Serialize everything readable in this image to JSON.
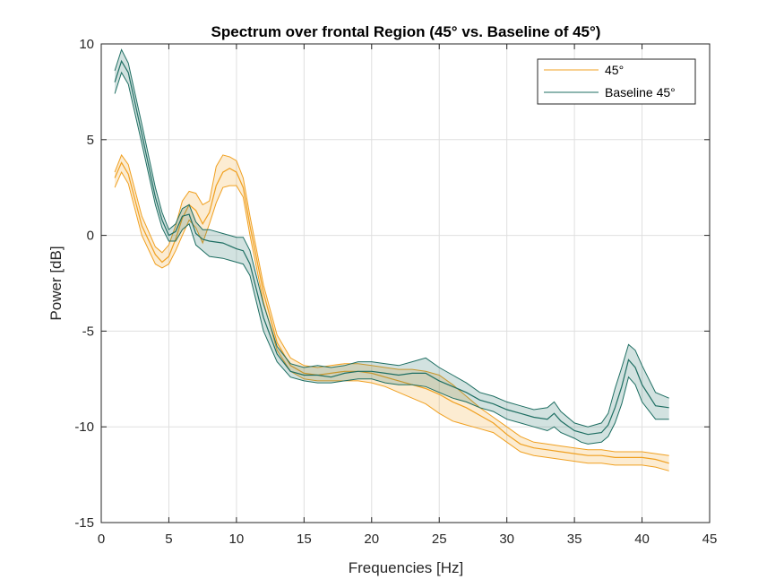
{
  "chart_data": {
    "type": "line",
    "title": "Spectrum over frontal Region (45° vs. Baseline of 45°)",
    "xlabel": "Frequencies [Hz]",
    "ylabel": "Power [dB]",
    "xlim": [
      0,
      45
    ],
    "ylim": [
      -15,
      10
    ],
    "xticks": [
      0,
      5,
      10,
      15,
      20,
      25,
      30,
      35,
      40,
      45
    ],
    "yticks": [
      -15,
      -10,
      -5,
      0,
      5,
      10
    ],
    "grid": true,
    "legend_position": "top-right",
    "series": [
      {
        "name": "45°",
        "color": "#f0a020",
        "x": [
          1,
          1.5,
          2,
          3,
          4,
          4.5,
          5,
          5.5,
          6,
          6.5,
          7,
          7.5,
          8,
          8.5,
          9,
          9.5,
          10,
          10.5,
          11,
          12,
          13,
          14,
          15,
          16,
          17,
          18,
          19,
          20,
          21,
          22,
          23,
          24,
          25,
          26,
          27,
          28,
          29,
          30,
          31,
          32,
          33,
          34,
          35,
          36,
          37,
          38,
          39,
          40,
          41,
          42
        ],
        "y": [
          3.0,
          3.8,
          3.2,
          0.5,
          -1.0,
          -1.4,
          -1.1,
          -0.2,
          0.9,
          1.6,
          1.3,
          0.6,
          1.2,
          2.6,
          3.3,
          3.5,
          3.3,
          2.5,
          0.5,
          -3.0,
          -5.6,
          -6.8,
          -7.2,
          -7.3,
          -7.2,
          -7.1,
          -7.1,
          -7.2,
          -7.4,
          -7.6,
          -7.8,
          -8.0,
          -8.3,
          -8.7,
          -9.0,
          -9.4,
          -9.8,
          -10.4,
          -10.9,
          -11.1,
          -11.2,
          -11.3,
          -11.4,
          -11.5,
          -11.5,
          -11.6,
          -11.6,
          -11.6,
          -11.7,
          -11.9
        ],
        "upper": [
          3.3,
          4.2,
          3.7,
          1.0,
          -0.6,
          -0.9,
          -0.5,
          0.5,
          1.8,
          2.3,
          2.2,
          1.6,
          1.8,
          3.6,
          4.2,
          4.1,
          3.9,
          3.0,
          1.0,
          -2.6,
          -5.2,
          -6.4,
          -6.8,
          -6.9,
          -6.8,
          -6.7,
          -6.7,
          -6.8,
          -6.9,
          -7.0,
          -7.0,
          -7.1,
          -7.3,
          -7.8,
          -8.4,
          -9.0,
          -9.5,
          -10.0,
          -10.5,
          -10.8,
          -10.9,
          -11.0,
          -11.1,
          -11.2,
          -11.2,
          -11.3,
          -11.3,
          -11.3,
          -11.4,
          -11.5
        ],
        "lower": [
          2.5,
          3.3,
          2.7,
          0.0,
          -1.5,
          -1.7,
          -1.5,
          -0.8,
          0.0,
          0.8,
          0.4,
          -0.4,
          0.6,
          1.7,
          2.5,
          2.6,
          2.6,
          2.0,
          0.0,
          -3.5,
          -6.0,
          -7.1,
          -7.5,
          -7.6,
          -7.6,
          -7.6,
          -7.6,
          -7.7,
          -7.9,
          -8.2,
          -8.5,
          -8.8,
          -9.3,
          -9.7,
          -9.9,
          -10.1,
          -10.3,
          -10.8,
          -11.3,
          -11.5,
          -11.6,
          -11.7,
          -11.8,
          -11.9,
          -11.9,
          -12.0,
          -12.0,
          -12.0,
          -12.1,
          -12.3
        ]
      },
      {
        "name": "Baseline 45°",
        "color": "#1e6e62",
        "x": [
          1,
          1.5,
          2,
          3,
          4,
          4.5,
          5,
          5.5,
          6,
          6.5,
          7,
          7.5,
          8,
          9,
          10,
          10.5,
          11,
          12,
          13,
          14,
          15,
          16,
          17,
          18,
          19,
          20,
          21,
          22,
          23,
          24,
          25,
          26,
          27,
          28,
          29,
          30,
          31,
          32,
          33,
          33.5,
          34,
          35,
          35.5,
          36,
          37,
          37.5,
          38,
          38.5,
          39,
          39.5,
          40,
          41,
          42
        ],
        "y": [
          8.0,
          9.1,
          8.5,
          5.3,
          2.0,
          0.8,
          0.0,
          0.2,
          1.0,
          1.1,
          0.1,
          -0.2,
          -0.3,
          -0.4,
          -0.7,
          -0.8,
          -1.5,
          -4.3,
          -6.2,
          -7.1,
          -7.3,
          -7.3,
          -7.4,
          -7.2,
          -7.1,
          -7.1,
          -7.2,
          -7.3,
          -7.2,
          -7.2,
          -7.6,
          -7.9,
          -8.2,
          -8.6,
          -8.8,
          -9.1,
          -9.3,
          -9.5,
          -9.6,
          -9.3,
          -9.7,
          -10.2,
          -10.3,
          -10.4,
          -10.3,
          -9.9,
          -9.0,
          -7.9,
          -6.5,
          -6.9,
          -7.8,
          -8.9,
          -9.0
        ],
        "upper": [
          8.6,
          9.7,
          9.0,
          5.8,
          2.5,
          1.2,
          0.3,
          0.6,
          1.4,
          1.6,
          0.7,
          0.3,
          0.3,
          0.1,
          -0.1,
          -0.1,
          -0.8,
          -3.6,
          -5.8,
          -6.7,
          -6.9,
          -6.8,
          -6.9,
          -6.8,
          -6.6,
          -6.6,
          -6.7,
          -6.8,
          -6.6,
          -6.4,
          -6.9,
          -7.3,
          -7.7,
          -8.2,
          -8.4,
          -8.7,
          -8.9,
          -9.1,
          -9.0,
          -8.7,
          -9.2,
          -9.8,
          -9.9,
          -10.0,
          -9.8,
          -9.3,
          -8.0,
          -6.9,
          -5.7,
          -6.0,
          -6.8,
          -8.2,
          -8.5
        ],
        "lower": [
          7.4,
          8.5,
          7.9,
          4.8,
          1.6,
          0.4,
          -0.3,
          -0.3,
          0.3,
          0.6,
          -0.5,
          -0.8,
          -1.1,
          -1.2,
          -1.4,
          -1.5,
          -2.1,
          -5.0,
          -6.6,
          -7.4,
          -7.6,
          -7.7,
          -7.7,
          -7.6,
          -7.5,
          -7.5,
          -7.7,
          -7.8,
          -7.8,
          -7.9,
          -8.2,
          -8.5,
          -8.7,
          -9.0,
          -9.2,
          -9.6,
          -9.8,
          -10.0,
          -10.2,
          -10.0,
          -10.3,
          -10.6,
          -10.8,
          -10.9,
          -10.8,
          -10.5,
          -9.8,
          -8.8,
          -7.4,
          -7.8,
          -8.7,
          -9.6,
          -9.6
        ]
      }
    ]
  }
}
